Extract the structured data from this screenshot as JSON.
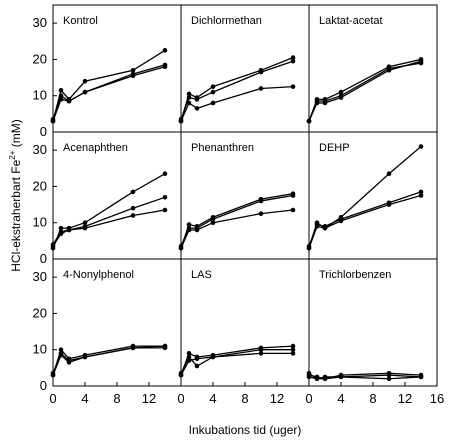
{
  "chart_data": {
    "type": "line",
    "ylabel_main": "HCl-ekstraherbart Fe",
    "ylabel_sup": "2+",
    "ylabel_unit": "(mM)",
    "xlabel": "Inkubations tid  (uger)",
    "x_ticks": [
      0,
      4,
      8,
      12
    ],
    "x_ticks_last_col": [
      0,
      4,
      8,
      12,
      16
    ],
    "y_ticks": [
      0,
      10,
      20,
      30
    ],
    "xlim": [
      0,
      16
    ],
    "ylim": [
      0,
      35
    ],
    "line_color": "#000000",
    "panels": [
      {
        "title": "Kontrol",
        "series": [
          {
            "x": [
              0,
              1,
              2,
              4,
              10,
              14
            ],
            "y": [
              3,
              11.5,
              9,
              14,
              17,
              22.5
            ]
          },
          {
            "x": [
              0,
              1,
              2,
              4,
              10,
              14
            ],
            "y": [
              3.5,
              10,
              8.5,
              11,
              16,
              18.5
            ]
          },
          {
            "x": [
              0,
              1,
              2,
              4,
              10,
              14
            ],
            "y": [
              3,
              9,
              8.5,
              11,
              15.5,
              18
            ]
          }
        ]
      },
      {
        "title": "Dichlormethan",
        "series": [
          {
            "x": [
              0,
              1,
              2,
              4,
              10,
              14
            ],
            "y": [
              3,
              10.5,
              9.5,
              12.5,
              17,
              20.5
            ]
          },
          {
            "x": [
              0,
              1,
              2,
              4,
              10,
              14
            ],
            "y": [
              3.5,
              9.5,
              9,
              11,
              16.5,
              19.5
            ]
          },
          {
            "x": [
              0,
              1,
              2,
              4,
              10,
              14
            ],
            "y": [
              3,
              8,
              6.5,
              8,
              12,
              12.5
            ]
          }
        ]
      },
      {
        "title": "Laktat-acetat",
        "series": [
          {
            "x": [
              0,
              1,
              2,
              4,
              10,
              14
            ],
            "y": [
              3,
              9,
              9,
              11,
              18,
              20
            ]
          },
          {
            "x": [
              0,
              1,
              2,
              4,
              10,
              14
            ],
            "y": [
              3,
              8.5,
              8.5,
              10,
              17.5,
              19
            ]
          },
          {
            "x": [
              0,
              1,
              2,
              4,
              10,
              14
            ],
            "y": [
              3,
              8,
              8,
              9.5,
              17,
              19.5
            ]
          }
        ]
      },
      {
        "title": "Acenaphthen",
        "series": [
          {
            "x": [
              0,
              1,
              2,
              4,
              10,
              14
            ],
            "y": [
              3,
              8.5,
              8.5,
              10,
              18.5,
              23.5
            ]
          },
          {
            "x": [
              0,
              1,
              2,
              4,
              10,
              14
            ],
            "y": [
              4,
              7.5,
              8,
              9,
              14,
              17
            ]
          },
          {
            "x": [
              0,
              1,
              2,
              4,
              10,
              14
            ],
            "y": [
              3.5,
              7,
              8,
              8.5,
              12,
              13.5
            ]
          }
        ]
      },
      {
        "title": "Phenanthren",
        "series": [
          {
            "x": [
              0,
              1,
              2,
              4,
              10,
              14
            ],
            "y": [
              3,
              9.5,
              9,
              11.5,
              16.5,
              18
            ]
          },
          {
            "x": [
              0,
              1,
              2,
              4,
              10,
              14
            ],
            "y": [
              3.5,
              8.5,
              8.5,
              11,
              16,
              17.5
            ]
          },
          {
            "x": [
              0,
              1,
              2,
              4,
              10,
              14
            ],
            "y": [
              3,
              8,
              8,
              10,
              12.5,
              13.5
            ]
          }
        ]
      },
      {
        "title": "DEHP",
        "series": [
          {
            "x": [
              0,
              1,
              2,
              4,
              10,
              14
            ],
            "y": [
              3,
              10,
              8.5,
              11.5,
              23.5,
              31
            ]
          },
          {
            "x": [
              0,
              1,
              2,
              4,
              10,
              14
            ],
            "y": [
              3.5,
              9.5,
              9,
              11,
              15.5,
              18.5
            ]
          },
          {
            "x": [
              0,
              1,
              2,
              4,
              10,
              14
            ],
            "y": [
              3,
              9,
              8.5,
              10.5,
              15,
              17.5
            ]
          }
        ]
      },
      {
        "title": "4-Nonylphenol",
        "series": [
          {
            "x": [
              0,
              1,
              2,
              4,
              10,
              14
            ],
            "y": [
              3,
              10,
              7.5,
              8.5,
              11,
              11
            ]
          },
          {
            "x": [
              0,
              1,
              2,
              4,
              10,
              14
            ],
            "y": [
              3.5,
              9,
              7,
              8,
              10.5,
              11
            ]
          },
          {
            "x": [
              0,
              1,
              2,
              4,
              10,
              14
            ],
            "y": [
              3,
              8.5,
              6.5,
              8,
              10.5,
              10.5
            ]
          }
        ]
      },
      {
        "title": "LAS",
        "series": [
          {
            "x": [
              0,
              1,
              2,
              4,
              10,
              14
            ],
            "y": [
              3,
              9,
              8,
              8.5,
              10.5,
              11
            ]
          },
          {
            "x": [
              0,
              1,
              2,
              4,
              10,
              14
            ],
            "y": [
              3.5,
              8,
              5.5,
              8,
              10,
              10
            ]
          },
          {
            "x": [
              0,
              1,
              2,
              4,
              10,
              14
            ],
            "y": [
              3,
              7,
              7.5,
              8,
              9,
              9
            ]
          }
        ]
      },
      {
        "title": "Trichlorbenzen",
        "series": [
          {
            "x": [
              0,
              1,
              2,
              4,
              10,
              14
            ],
            "y": [
              3,
              2.5,
              2,
              3,
              3.5,
              3
            ]
          },
          {
            "x": [
              0,
              1,
              2,
              4,
              10,
              14
            ],
            "y": [
              3.5,
              2,
              2.5,
              2.5,
              3,
              2.5
            ]
          },
          {
            "x": [
              0,
              1,
              2,
              4,
              10,
              14
            ],
            "y": [
              2.5,
              2,
              2,
              2.5,
              2,
              2.5
            ]
          }
        ]
      }
    ]
  }
}
